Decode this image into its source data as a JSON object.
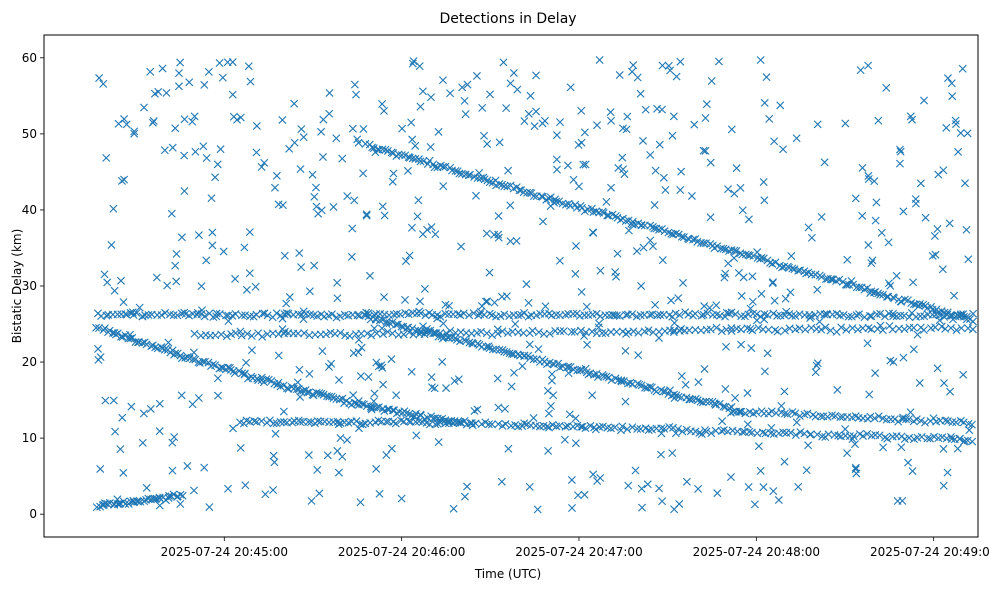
{
  "chart_data": {
    "type": "scatter",
    "title": "Detections in Delay",
    "xlabel": "Time (UTC)",
    "ylabel": "Bistatic Delay (km)",
    "marker": "x",
    "color": "#1f77b4",
    "xlim": [
      -31,
      285
    ],
    "ylim": [
      -3,
      63
    ],
    "x_units": "seconds after 2025-07-24 20:44:30",
    "x_ticks": [
      {
        "value": 30,
        "label": "2025-07-24 20:45:00"
      },
      {
        "value": 90,
        "label": "2025-07-24 20:46:00"
      },
      {
        "value": 150,
        "label": "2025-07-24 20:47:00"
      },
      {
        "value": 210,
        "label": "2025-07-24 20:48:00"
      },
      {
        "value": 270,
        "label": "2025-07-24 20:49:00"
      }
    ],
    "y_ticks": [
      {
        "value": 0,
        "label": "0"
      },
      {
        "value": 10,
        "label": "10"
      },
      {
        "value": 20,
        "label": "20"
      },
      {
        "value": 30,
        "label": "30"
      },
      {
        "value": 40,
        "label": "40"
      },
      {
        "value": 50,
        "label": "50"
      },
      {
        "value": 60,
        "label": "60"
      }
    ],
    "series": [
      {
        "name": "track-descending-lower",
        "x_start": -13,
        "x_end": 114,
        "y_start": 24.5,
        "y_end": 12.0,
        "curve": "convex",
        "n": 150
      },
      {
        "name": "track-lower-tail",
        "x_start": 114,
        "x_end": 283,
        "y_start": 12.0,
        "y_end": 9.8,
        "n": 120
      },
      {
        "name": "track-descending-middle",
        "x_start": 78,
        "x_end": 205,
        "y_start": 26.0,
        "y_end": 13.5,
        "n": 140
      },
      {
        "name": "track-middle-tail",
        "x_start": 205,
        "x_end": 283,
        "y_start": 13.5,
        "y_end": 12.0,
        "n": 60
      },
      {
        "name": "track-descending-upper",
        "x_start": 78,
        "x_end": 283,
        "y_start": 48.5,
        "y_end": 25.5,
        "n": 220
      },
      {
        "name": "band-26km",
        "x_start": -13,
        "x_end": 283,
        "y_start": 26.2,
        "y_end": 26.2,
        "n": 220
      },
      {
        "name": "band-24km",
        "x_start": 20,
        "x_end": 283,
        "y_start": 23.5,
        "y_end": 24.5,
        "n": 150
      },
      {
        "name": "band-12km",
        "x_start": 35,
        "x_end": 110,
        "y_start": 12.2,
        "y_end": 12.0,
        "n": 60
      },
      {
        "name": "cluster-near-zero",
        "x_start": -13,
        "x_end": 16,
        "y_start": 1.0,
        "y_end": 2.5,
        "n": 40
      },
      {
        "name": "clutter",
        "x_range": [
          -13,
          283
        ],
        "y_range": [
          0.5,
          60
        ],
        "n": 700
      }
    ]
  }
}
